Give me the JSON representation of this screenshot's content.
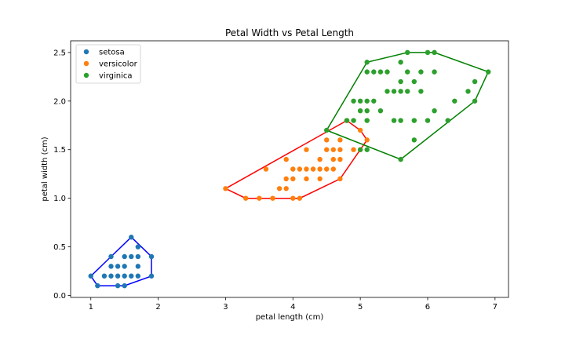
{
  "chart_data": {
    "type": "scatter",
    "title": "Petal Width vs Petal Length",
    "xlabel": "petal length (cm)",
    "ylabel": "petal width (cm)",
    "xlim": [
      0.7,
      7.2
    ],
    "ylim": [
      -0.02,
      2.62
    ],
    "x_ticks": [
      1,
      2,
      3,
      4,
      5,
      6,
      7
    ],
    "y_ticks": [
      0.0,
      0.5,
      1.0,
      1.5,
      2.0,
      2.5
    ],
    "x_tick_labels": [
      "1",
      "2",
      "3",
      "4",
      "5",
      "6",
      "7"
    ],
    "y_tick_labels": [
      "0.0",
      "0.5",
      "1.0",
      "1.5",
      "2.0",
      "2.5"
    ],
    "grid": false,
    "legend_position": "top-left",
    "series": [
      {
        "name": "setosa",
        "color": "#1f77b4",
        "hull_color": "#0000ff",
        "points": [
          [
            1.0,
            0.2
          ],
          [
            1.1,
            0.1
          ],
          [
            1.2,
            0.2
          ],
          [
            1.3,
            0.2
          ],
          [
            1.3,
            0.3
          ],
          [
            1.3,
            0.4
          ],
          [
            1.4,
            0.1
          ],
          [
            1.4,
            0.2
          ],
          [
            1.4,
            0.3
          ],
          [
            1.5,
            0.1
          ],
          [
            1.5,
            0.2
          ],
          [
            1.5,
            0.3
          ],
          [
            1.5,
            0.4
          ],
          [
            1.6,
            0.2
          ],
          [
            1.6,
            0.4
          ],
          [
            1.6,
            0.6
          ],
          [
            1.7,
            0.2
          ],
          [
            1.7,
            0.3
          ],
          [
            1.7,
            0.4
          ],
          [
            1.7,
            0.5
          ],
          [
            1.9,
            0.2
          ],
          [
            1.9,
            0.4
          ]
        ],
        "hull": [
          [
            1.0,
            0.2
          ],
          [
            1.1,
            0.1
          ],
          [
            1.5,
            0.1
          ],
          [
            1.9,
            0.2
          ],
          [
            1.9,
            0.4
          ],
          [
            1.6,
            0.6
          ],
          [
            1.3,
            0.4
          ]
        ]
      },
      {
        "name": "versicolor",
        "color": "#ff7f0e",
        "hull_color": "#ff0000",
        "points": [
          [
            3.0,
            1.1
          ],
          [
            3.3,
            1.0
          ],
          [
            3.5,
            1.0
          ],
          [
            3.7,
            1.0
          ],
          [
            3.6,
            1.3
          ],
          [
            3.8,
            1.1
          ],
          [
            3.9,
            1.1
          ],
          [
            3.9,
            1.2
          ],
          [
            3.9,
            1.4
          ],
          [
            4.0,
            1.0
          ],
          [
            4.0,
            1.2
          ],
          [
            4.0,
            1.3
          ],
          [
            4.1,
            1.0
          ],
          [
            4.1,
            1.3
          ],
          [
            4.2,
            1.2
          ],
          [
            4.2,
            1.3
          ],
          [
            4.2,
            1.5
          ],
          [
            4.3,
            1.3
          ],
          [
            4.4,
            1.2
          ],
          [
            4.4,
            1.3
          ],
          [
            4.4,
            1.4
          ],
          [
            4.5,
            1.3
          ],
          [
            4.5,
            1.5
          ],
          [
            4.5,
            1.6
          ],
          [
            4.6,
            1.3
          ],
          [
            4.6,
            1.4
          ],
          [
            4.6,
            1.5
          ],
          [
            4.7,
            1.2
          ],
          [
            4.7,
            1.4
          ],
          [
            4.7,
            1.5
          ],
          [
            4.7,
            1.6
          ],
          [
            4.8,
            1.8
          ],
          [
            4.9,
            1.5
          ],
          [
            5.0,
            1.5
          ],
          [
            5.0,
            1.7
          ],
          [
            5.1,
            1.6
          ]
        ],
        "hull": [
          [
            3.0,
            1.1
          ],
          [
            3.3,
            1.0
          ],
          [
            4.1,
            1.0
          ],
          [
            4.7,
            1.2
          ],
          [
            5.1,
            1.6
          ],
          [
            5.0,
            1.7
          ],
          [
            4.8,
            1.8
          ]
        ]
      },
      {
        "name": "virginica",
        "color": "#2ca02c",
        "hull_color": "#008000",
        "points": [
          [
            4.5,
            1.7
          ],
          [
            4.8,
            1.8
          ],
          [
            4.9,
            1.8
          ],
          [
            4.9,
            2.0
          ],
          [
            5.0,
            1.5
          ],
          [
            5.0,
            2.0
          ],
          [
            5.0,
            1.9
          ],
          [
            5.1,
            1.5
          ],
          [
            5.1,
            1.8
          ],
          [
            5.1,
            1.9
          ],
          [
            5.1,
            2.0
          ],
          [
            5.1,
            2.3
          ],
          [
            5.1,
            2.4
          ],
          [
            5.2,
            2.0
          ],
          [
            5.2,
            2.3
          ],
          [
            5.3,
            1.9
          ],
          [
            5.3,
            2.3
          ],
          [
            5.4,
            2.1
          ],
          [
            5.4,
            2.3
          ],
          [
            5.5,
            1.8
          ],
          [
            5.5,
            2.1
          ],
          [
            5.6,
            1.4
          ],
          [
            5.6,
            1.8
          ],
          [
            5.6,
            2.1
          ],
          [
            5.6,
            2.2
          ],
          [
            5.6,
            2.4
          ],
          [
            5.7,
            2.1
          ],
          [
            5.7,
            2.3
          ],
          [
            5.7,
            2.5
          ],
          [
            5.8,
            1.6
          ],
          [
            5.8,
            1.8
          ],
          [
            5.8,
            2.2
          ],
          [
            5.9,
            2.1
          ],
          [
            5.9,
            2.3
          ],
          [
            6.0,
            1.8
          ],
          [
            6.0,
            2.5
          ],
          [
            6.1,
            1.9
          ],
          [
            6.1,
            2.3
          ],
          [
            6.1,
            2.5
          ],
          [
            6.3,
            1.8
          ],
          [
            6.4,
            2.0
          ],
          [
            6.6,
            2.1
          ],
          [
            6.7,
            2.0
          ],
          [
            6.7,
            2.2
          ],
          [
            6.9,
            2.3
          ]
        ],
        "hull": [
          [
            4.5,
            1.7
          ],
          [
            5.6,
            1.4
          ],
          [
            6.7,
            2.0
          ],
          [
            6.9,
            2.3
          ],
          [
            6.1,
            2.5
          ],
          [
            5.7,
            2.5
          ],
          [
            5.1,
            2.4
          ]
        ]
      }
    ]
  }
}
